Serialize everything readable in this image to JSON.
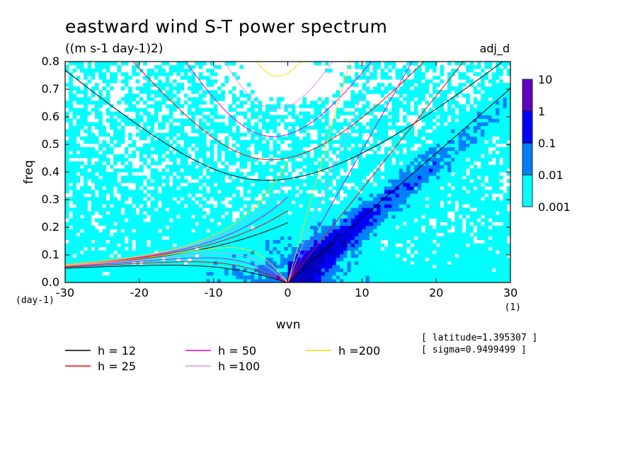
{
  "chart_data": {
    "type": "heatmap",
    "title": "eastward wind S-T power spectrum",
    "subtitle": "((m s-1 day-1)2)",
    "tag": "adj_d",
    "xlabel": "wvn",
    "ylabel": "freq",
    "x_unit": "(1)",
    "y_unit": "(day-1)",
    "xlim": [
      -30,
      30
    ],
    "ylim": [
      0,
      0.8
    ],
    "x_ticks": [
      "-30",
      "-20",
      "-10",
      "0",
      "10",
      "20",
      "30"
    ],
    "x_tick_values": [
      -30,
      -20,
      -10,
      0,
      10,
      20,
      30
    ],
    "y_ticks": [
      "0.0",
      "0.1",
      "0.2",
      "0.3",
      "0.4",
      "0.5",
      "0.6",
      "0.7",
      "0.8"
    ],
    "y_tick_values": [
      0,
      0.1,
      0.2,
      0.3,
      0.4,
      0.5,
      0.6,
      0.7,
      0.8
    ],
    "colorbar": {
      "levels": [
        "0.001",
        "0.01",
        "0.1",
        "1",
        "10"
      ],
      "colors": [
        "#00ffff",
        "#0080ff",
        "#0000ff",
        "#0000c0",
        "#6000c0"
      ]
    },
    "info": [
      "[ latitude=1.395307 ]",
      "[ sigma=0.9499499 ]"
    ],
    "legend": [
      {
        "label": "h = 12",
        "color": "#000000"
      },
      {
        "label": "h = 25",
        "color": "#ff0000"
      },
      {
        "label": "h = 50",
        "color": "#e000e0"
      },
      {
        "label": "h =100",
        "color": "#e090f0"
      },
      {
        "label": "h =200",
        "color": "#ffd700"
      }
    ],
    "equivalent_depths": [
      12,
      25,
      50,
      100,
      200
    ],
    "legend_placement": "bottom",
    "grid": false
  }
}
